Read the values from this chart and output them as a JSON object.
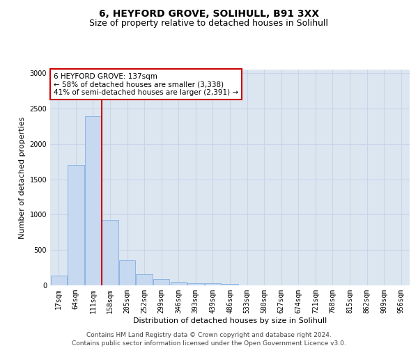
{
  "title": "6, HEYFORD GROVE, SOLIHULL, B91 3XX",
  "subtitle": "Size of property relative to detached houses in Solihull",
  "xlabel": "Distribution of detached houses by size in Solihull",
  "ylabel": "Number of detached properties",
  "bar_values": [
    140,
    1700,
    2390,
    920,
    350,
    160,
    90,
    50,
    30,
    25,
    20,
    0,
    0,
    0,
    0,
    0,
    0,
    0,
    0,
    0,
    0
  ],
  "bar_labels": [
    "17sqm",
    "64sqm",
    "111sqm",
    "158sqm",
    "205sqm",
    "252sqm",
    "299sqm",
    "346sqm",
    "393sqm",
    "439sqm",
    "486sqm",
    "533sqm",
    "580sqm",
    "627sqm",
    "674sqm",
    "721sqm",
    "768sqm",
    "815sqm",
    "862sqm",
    "909sqm",
    "956sqm"
  ],
  "bar_color": "#c6d9f0",
  "bar_edge_color": "#8db4e2",
  "reference_line_color": "#cc0000",
  "annotation_text": "6 HEYFORD GROVE: 137sqm\n← 58% of detached houses are smaller (3,338)\n41% of semi-detached houses are larger (2,391) →",
  "annotation_box_color": "#ffffff",
  "annotation_box_edge_color": "#cc0000",
  "ylim": [
    0,
    3050
  ],
  "yticks": [
    0,
    500,
    1000,
    1500,
    2000,
    2500,
    3000
  ],
  "grid_color": "#c8d4e8",
  "background_color": "#dce6f1",
  "footer_text": "Contains HM Land Registry data © Crown copyright and database right 2024.\nContains public sector information licensed under the Open Government Licence v3.0.",
  "title_fontsize": 10,
  "subtitle_fontsize": 9,
  "axis_label_fontsize": 8,
  "tick_fontsize": 7,
  "annotation_fontsize": 7.5,
  "footer_fontsize": 6.5
}
